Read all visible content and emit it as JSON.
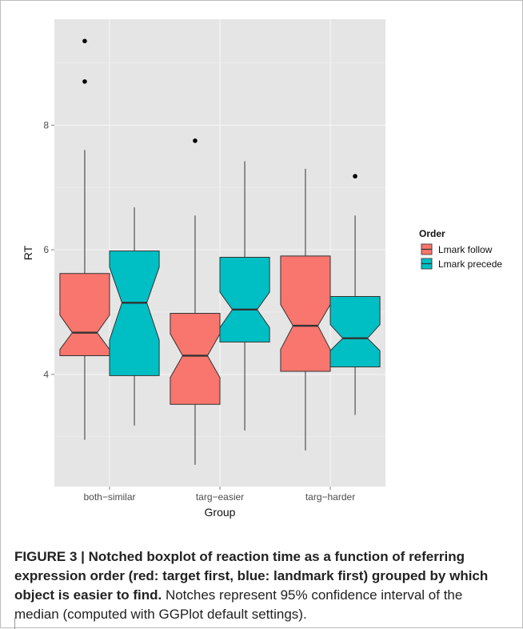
{
  "chart_data": {
    "type": "boxplot",
    "notched": true,
    "xlabel": "Group",
    "ylabel": "RT",
    "categories": [
      "both−similar",
      "targ−easier",
      "targ−harder"
    ],
    "y_ticks": [
      "4",
      "6",
      "8"
    ],
    "ylim": [
      2.2,
      9.7
    ],
    "grid": true,
    "legend": {
      "title": "Order",
      "placement": "right",
      "entries": [
        "Lmark follow",
        "Lmark precede"
      ]
    },
    "colors": {
      "Lmark follow": "#F8766D",
      "Lmark precede": "#00BFC4",
      "panel": "#E5E5E5"
    },
    "series": [
      {
        "name": "Lmark follow",
        "boxes": [
          {
            "category": "both−similar",
            "whisker_low": 2.95,
            "q1": 4.3,
            "median": 4.67,
            "q3": 5.62,
            "whisker_high": 7.6,
            "notch_low": 4.4,
            "notch_high": 4.95,
            "outliers": [
              8.7,
              9.35
            ]
          },
          {
            "category": "targ−easier",
            "whisker_low": 2.55,
            "q1": 3.52,
            "median": 4.3,
            "q3": 4.98,
            "whisker_high": 6.55,
            "notch_low": 3.95,
            "notch_high": 4.65,
            "outliers": [
              7.75
            ]
          },
          {
            "category": "targ−harder",
            "whisker_low": 2.78,
            "q1": 4.05,
            "median": 4.78,
            "q3": 5.9,
            "whisker_high": 7.3,
            "notch_low": 4.4,
            "notch_high": 5.12,
            "outliers": []
          }
        ]
      },
      {
        "name": "Lmark precede",
        "boxes": [
          {
            "category": "both−similar",
            "whisker_low": 3.18,
            "q1": 3.98,
            "median": 5.15,
            "q3": 5.98,
            "whisker_high": 6.68,
            "notch_low": 4.55,
            "notch_high": 5.72,
            "outliers": []
          },
          {
            "category": "targ−easier",
            "whisker_low": 3.1,
            "q1": 4.52,
            "median": 5.04,
            "q3": 5.88,
            "whisker_high": 7.42,
            "notch_low": 4.75,
            "notch_high": 5.32,
            "outliers": []
          },
          {
            "category": "targ−harder",
            "whisker_low": 3.35,
            "q1": 4.12,
            "median": 4.58,
            "q3": 5.25,
            "whisker_high": 6.55,
            "notch_low": 4.38,
            "notch_high": 4.8,
            "outliers": [
              7.18
            ]
          }
        ]
      }
    ]
  },
  "caption": {
    "bold": "FIGURE 3 | Notched boxplot of reaction time as a function of referring expression order (red: target first, blue: landmark first) grouped by which object is easier to find.",
    "normal": " Notches represent 95% confidence interval of the median (computed with GGPlot default settings)."
  }
}
